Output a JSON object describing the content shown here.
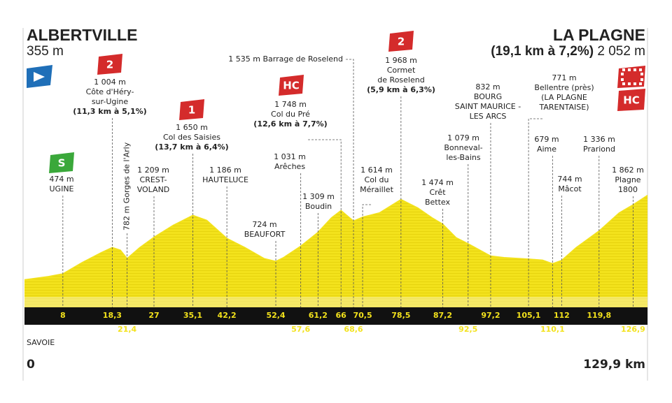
{
  "chart_data": {
    "type": "area",
    "start": {
      "name": "ALBERTVILLE",
      "elevation": {
        "value": 355,
        "label": "355 m"
      }
    },
    "finish": {
      "name": "LA PLAGNE",
      "climb": "(19,1 km à 7,2%)",
      "elevation": {
        "value": 2052,
        "label": "2 052 m"
      },
      "category": "HC"
    },
    "region": "SAVOIE",
    "x": [
      0,
      5,
      8,
      12,
      16,
      18.3,
      20,
      21.4,
      24,
      27,
      31,
      35.1,
      38,
      42.2,
      46,
      50,
      52.4,
      54,
      57.6,
      61.2,
      64,
      66,
      68.6,
      70.5,
      74,
      78.5,
      82,
      85,
      87.2,
      90,
      92.5,
      97.2,
      100,
      105.1,
      108,
      110.1,
      112,
      115,
      119.8,
      124,
      126.9,
      129.9
    ],
    "values": [
      355,
      420,
      474,
      700,
      900,
      1004,
      950,
      782,
      1000,
      1209,
      1450,
      1650,
      1550,
      1186,
      1000,
      780,
      724,
      800,
      1031,
      1309,
      1600,
      1748,
      1535,
      1614,
      1700,
      1968,
      1800,
      1600,
      1474,
      1200,
      1079,
      832,
      800,
      771,
      750,
      679,
      744,
      1000,
      1336,
      1700,
      1862,
      2052
    ],
    "color": "#f3e21c",
    "xlim": [
      0,
      129.9
    ],
    "ylim": [
      -200,
      2300
    ],
    "xticks": [
      0,
      {
        "value": 129.9,
        "label": "129,9 km"
      }
    ],
    "waypoints": [
      {
        "km": 8,
        "elevation": {
          "value": 474,
          "label": "474 m"
        },
        "name": [
          "UGINE"
        ],
        "category": "S"
      },
      {
        "km": {
          "value": 18.3,
          "label": "18,3"
        },
        "elevation": {
          "value": 1004,
          "label": "1 004 m"
        },
        "name": [
          "Côte d'Héry-",
          "sur-Ugine"
        ],
        "climb": "(11,3 km à 5,1%)",
        "category": "2"
      },
      {
        "km": {
          "value": 21.4,
          "label": "21,4"
        },
        "elevation": {
          "value": 782,
          "label": "782 m"
        },
        "name": [
          "Gorges de l'Arly"
        ]
      },
      {
        "km": 27,
        "elevation": {
          "value": 1209,
          "label": "1 209 m"
        },
        "name": [
          "CREST-",
          "VOLAND"
        ]
      },
      {
        "km": {
          "value": 35.1,
          "label": "35,1"
        },
        "elevation": {
          "value": 1650,
          "label": "1 650 m"
        },
        "name": [
          "Col des Saisies"
        ],
        "climb": "(13,7 km à 6,4%)",
        "category": "1"
      },
      {
        "km": {
          "value": 42.2,
          "label": "42,2"
        },
        "elevation": {
          "value": 1186,
          "label": "1 186 m"
        },
        "name": [
          "HAUTELUCE"
        ]
      },
      {
        "km": {
          "value": 52.4,
          "label": "52,4"
        },
        "elevation": {
          "value": 724,
          "label": "724 m"
        },
        "name": [
          "BEAUFORT"
        ]
      },
      {
        "km": {
          "value": 57.6,
          "label": "57,6"
        },
        "elevation": {
          "value": 1031,
          "label": "1 031 m"
        },
        "name": [
          "Arêches"
        ]
      },
      {
        "km": {
          "value": 61.2,
          "label": "61,2"
        },
        "elevation": {
          "value": 1309,
          "label": "1 309 m"
        },
        "name": [
          "Boudin"
        ]
      },
      {
        "km": 66,
        "elevation": {
          "value": 1748,
          "label": "1 748 m"
        },
        "name": [
          "Col du Pré"
        ],
        "climb": "(12,6 km à 7,7%)",
        "category": "HC"
      },
      {
        "km": {
          "value": 68.6,
          "label": "68,6"
        },
        "elevation": {
          "value": 1535,
          "label": "1 535 m"
        },
        "name": [
          "Barrage de Roselend"
        ]
      },
      {
        "km": {
          "value": 70.5,
          "label": "70,5"
        },
        "elevation": {
          "value": 1614,
          "label": "1 614 m"
        },
        "name": [
          "Col du",
          "Mérail­let"
        ]
      },
      {
        "km": {
          "value": 78.5,
          "label": "78,5"
        },
        "elevation": {
          "value": 1968,
          "label": "1 968 m"
        },
        "name": [
          "Cormet",
          "de Roselend"
        ],
        "climb": "(5,9 km à 6,3%)",
        "category": "2"
      },
      {
        "km": {
          "value": 87.2,
          "label": "87,2"
        },
        "elevation": {
          "value": 1474,
          "label": "1 474 m"
        },
        "name": [
          "Crêt",
          "Bettex"
        ]
      },
      {
        "km": {
          "value": 92.5,
          "label": "92,5"
        },
        "elevation": {
          "value": 1079,
          "label": "1 079 m"
        },
        "name": [
          "Bonneval-",
          "les-Bains"
        ]
      },
      {
        "km": {
          "value": 97.2,
          "label": "97,2"
        },
        "elevation": {
          "value": 832,
          "label": "832 m"
        },
        "name": [
          "BOURG",
          "SAINT MAURICE -",
          "LES ARCS"
        ]
      },
      {
        "km": {
          "value": 105.1,
          "label": "105,1"
        },
        "elevation": {
          "value": 771,
          "label": "771 m"
        },
        "name": [
          "Bellentre (près)",
          "(LA PLAGNE",
          "TARENTAISE)"
        ]
      },
      {
        "km": {
          "value": 110.1,
          "label": "110,1"
        },
        "elevation": {
          "value": 679,
          "label": "679 m"
        },
        "name": [
          "Aime"
        ]
      },
      {
        "km": 112,
        "elevation": {
          "value": 744,
          "label": "744 m"
        },
        "name": [
          "Mâcot"
        ]
      },
      {
        "km": {
          "value": 119.8,
          "label": "119,8"
        },
        "elevation": {
          "value": 1336,
          "label": "1 336 m"
        },
        "name": [
          "Prariond"
        ]
      },
      {
        "km": {
          "value": 126.9,
          "label": "126,9"
        },
        "elevation": {
          "value": 1862,
          "label": "1 862 m"
        },
        "name": [
          "Plagne",
          "1800"
        ]
      }
    ]
  }
}
